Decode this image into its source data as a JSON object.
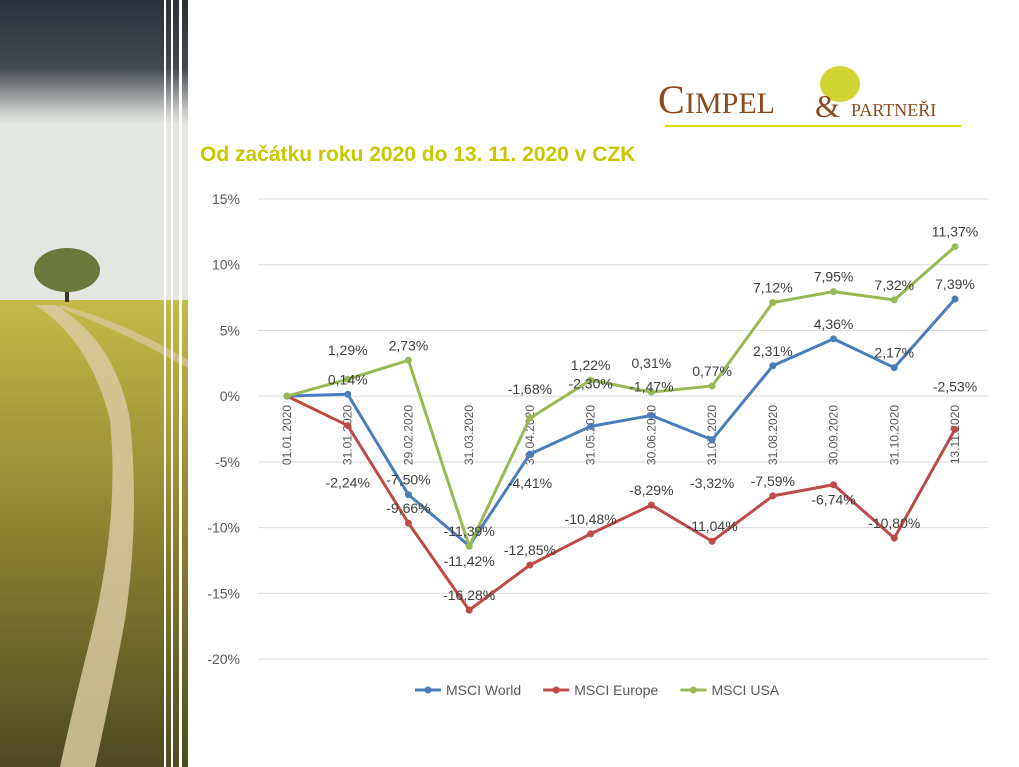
{
  "title": "Od začátku roku 2020 do 13. 11. 2020 v CZK",
  "logo": {
    "main": "CIMPEL",
    "amp": "&",
    "sub": "PARTNEŘI"
  },
  "chart_data": {
    "type": "line",
    "title": "Od začátku roku 2020 do 13. 11. 2020 v CZK",
    "categories": [
      "01.01.2020",
      "31.01.2020",
      "29.02.2020",
      "31.03.2020",
      "30.04.2020",
      "31.05.2020",
      "30.06.2020",
      "31.07.2020",
      "31.08.2020",
      "30.09.2020",
      "31.10.2020",
      "13.11.2020"
    ],
    "ylim": [
      -20,
      15
    ],
    "yticks": [
      15,
      10,
      5,
      0,
      -5,
      -10,
      -15,
      -20
    ],
    "ytick_labels": [
      "15%",
      "10%",
      "5%",
      "0%",
      "-5%",
      "-10%",
      "-15%",
      "-20%"
    ],
    "grid": true,
    "legend": "bottom",
    "series": [
      {
        "name": "MSCI World",
        "color": "#4a7ebb",
        "values": [
          0,
          0.14,
          -7.5,
          -11.39,
          -4.41,
          -2.3,
          -1.47,
          -3.32,
          2.31,
          4.36,
          2.17,
          7.39
        ]
      },
      {
        "name": "MSCI Europe",
        "color": "#be4b48",
        "values": [
          0,
          -2.24,
          -9.66,
          -16.28,
          -12.85,
          -10.48,
          -8.29,
          -11.04,
          -7.59,
          -6.74,
          -10.8,
          -2.53
        ]
      },
      {
        "name": "MSCI USA",
        "color": "#98b954",
        "values": [
          0,
          1.29,
          2.73,
          -11.42,
          -1.68,
          1.22,
          0.31,
          0.77,
          7.12,
          7.95,
          7.32,
          11.37
        ]
      }
    ]
  }
}
